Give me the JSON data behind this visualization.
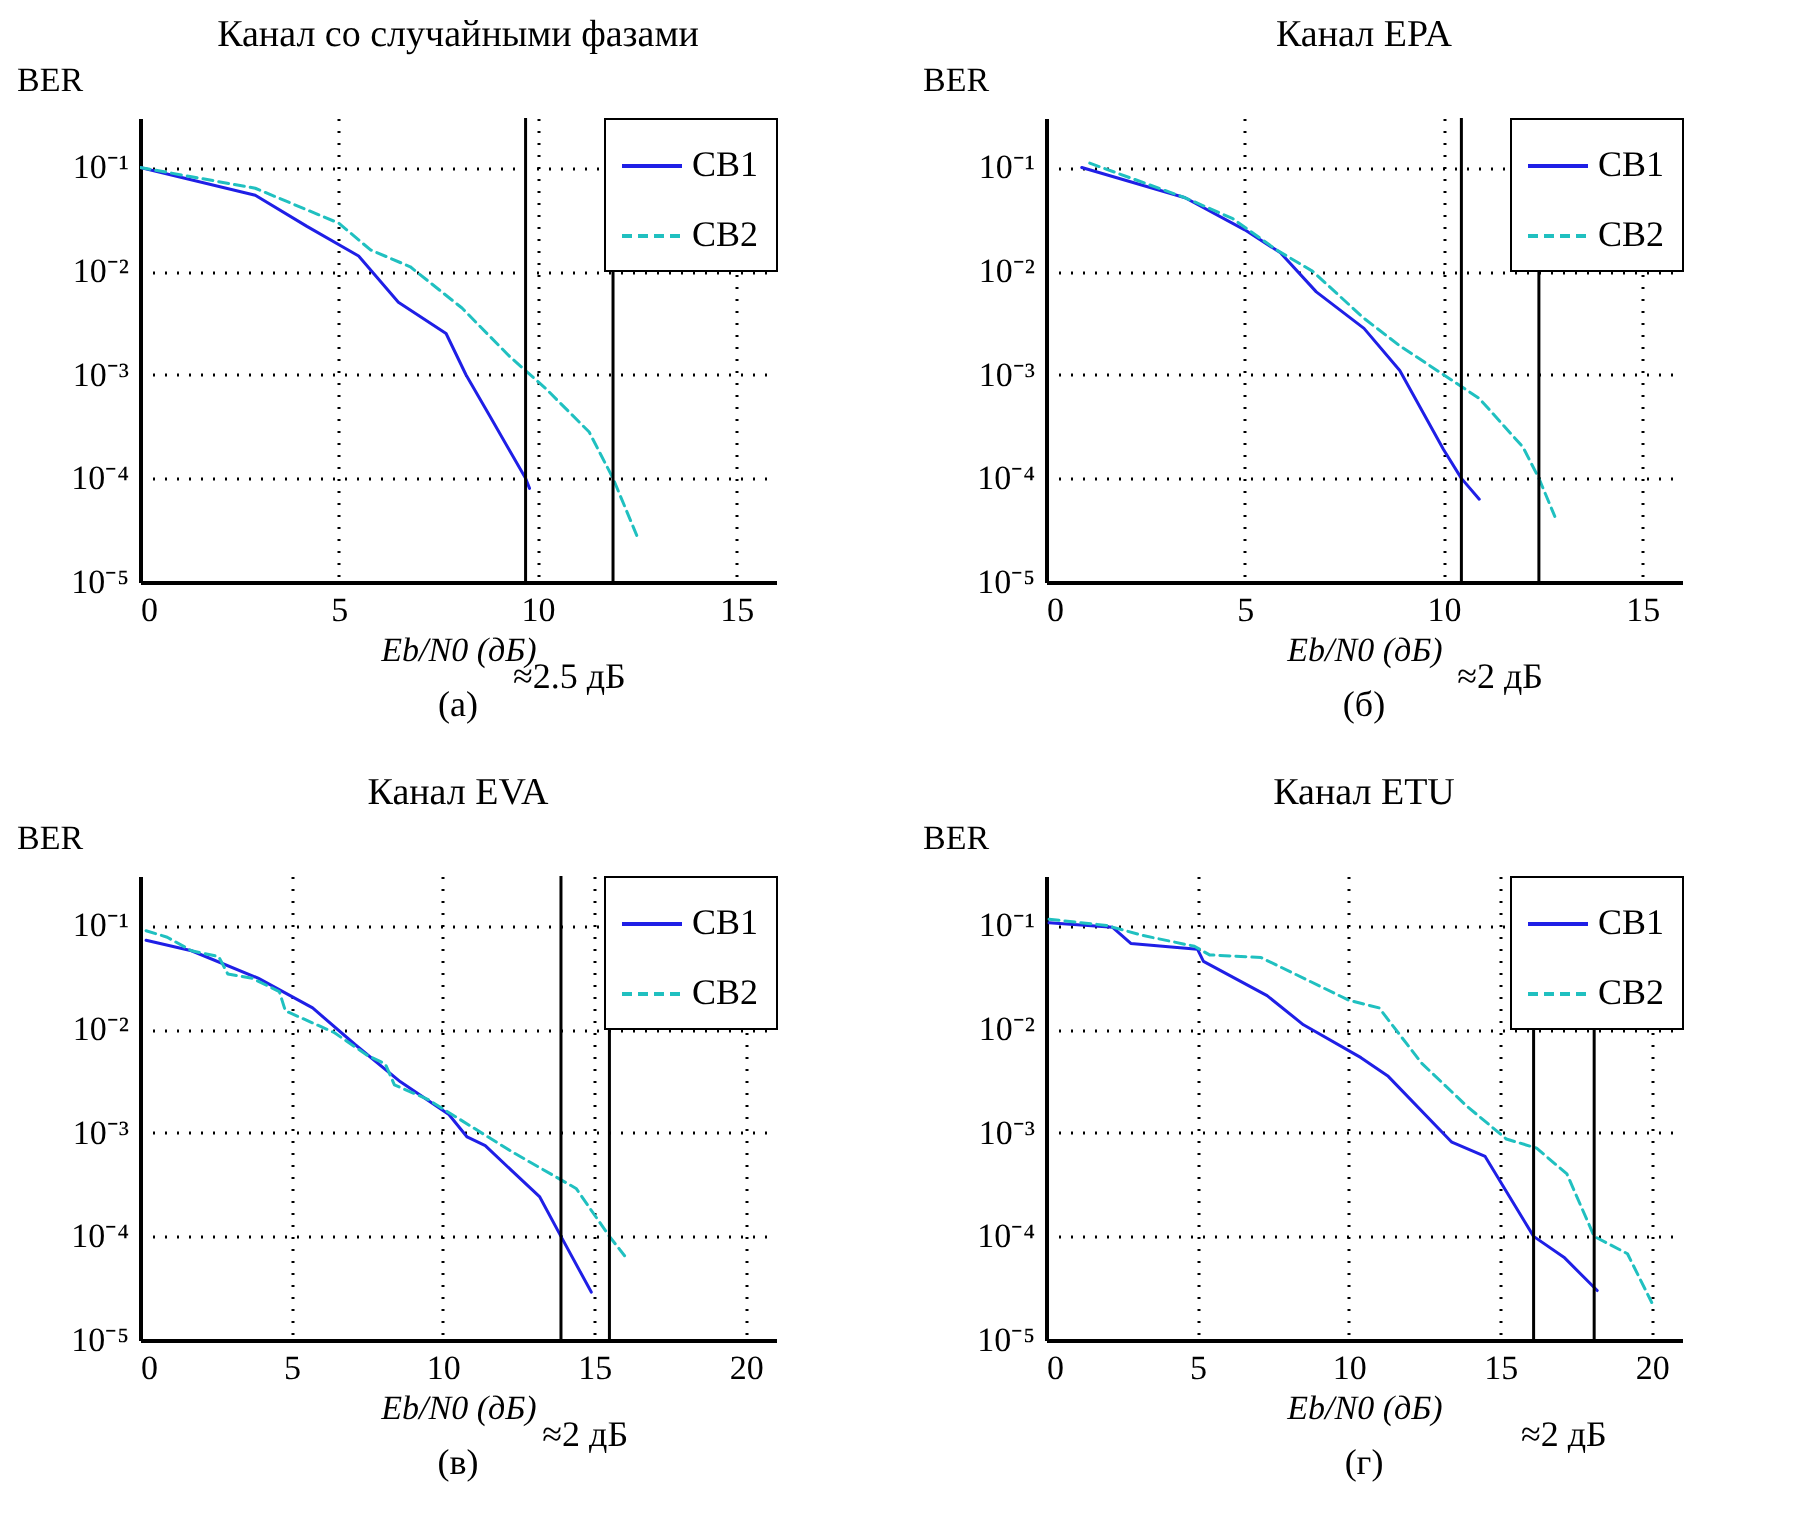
{
  "chart_data": [
    {
      "type": "line",
      "title": "Канал со случайными фазами",
      "xlabel": "Eb/N0 (дБ)",
      "ylabel": "BER",
      "xlim": [
        0,
        16
      ],
      "xticks": [
        0,
        5,
        10,
        15
      ],
      "ylim": [
        1e-05,
        0.3
      ],
      "yticks": [
        {
          "value": 0.1,
          "label": "10⁻¹"
        },
        {
          "value": 0.01,
          "label": "10⁻²"
        },
        {
          "value": 0.001,
          "label": "10⁻³"
        },
        {
          "value": 0.0001,
          "label": "10⁻⁴"
        },
        {
          "value": 1e-05,
          "label": "10⁻⁵"
        }
      ],
      "log": true,
      "grid": true,
      "legend": "top right",
      "marker": "none",
      "series": [
        {
          "name": "СВ1",
          "color": "#1f1fe6",
          "line_style": "solid",
          "x": [
            0,
            2.9,
            4.2,
            5.5,
            6.5,
            7.7,
            8.2,
            8.8,
            9.7,
            9.8
          ],
          "values": [
            0.1,
            0.054,
            0.027,
            0.014,
            0.005,
            0.0025,
            0.001,
            0.0004,
            0.0001,
            8e-05
          ]
        },
        {
          "name": "СВ2",
          "color": "#20c0c0",
          "line_style": "dashed",
          "x": [
            0,
            2.9,
            5,
            5.8,
            6.8,
            8.1,
            9.3,
            10.2,
            11.3,
            11.9,
            12.5
          ],
          "values": [
            0.1,
            0.063,
            0.029,
            0.016,
            0.011,
            0.0044,
            0.0015,
            0.00074,
            0.00028,
            0.0001,
            2.8e-05
          ]
        }
      ],
      "ref_lines": [
        {
          "axis": "x",
          "value": 9.7,
          "color": "#000000"
        },
        {
          "axis": "x",
          "value": 11.9,
          "color": "#000000"
        }
      ],
      "annotations": [
        "(а)",
        "≈2.5 дБ"
      ]
    },
    {
      "type": "line",
      "title": "Канал EPA",
      "xlabel": "Eb/N0 (дБ)",
      "ylabel": "BER",
      "xlim": [
        0,
        16
      ],
      "xticks": [
        0,
        5,
        10,
        15
      ],
      "ylim": [
        1e-05,
        0.3
      ],
      "yticks": [
        {
          "value": 0.1,
          "label": "10⁻¹"
        },
        {
          "value": 0.01,
          "label": "10⁻²"
        },
        {
          "value": 0.001,
          "label": "10⁻³"
        },
        {
          "value": 0.0001,
          "label": "10⁻⁴"
        },
        {
          "value": 1e-05,
          "label": "10⁻⁵"
        }
      ],
      "log": true,
      "grid": true,
      "legend": "top right",
      "marker": "none",
      "series": [
        {
          "name": "СВ1",
          "color": "#1f1fe6",
          "line_style": "solid",
          "x": [
            0.9,
            3.5,
            5,
            5.9,
            6.8,
            8,
            8.9,
            10,
            10.45,
            10.9
          ],
          "values": [
            0.1,
            0.051,
            0.025,
            0.015,
            0.0063,
            0.0028,
            0.0011,
            0.00019,
            0.0001,
            6.3e-05
          ]
        },
        {
          "name": "СВ2",
          "color": "#20c0c0",
          "line_style": "dashed",
          "x": [
            1.1,
            3.5,
            4.7,
            5.8,
            6.7,
            8,
            8.9,
            10,
            10.9,
            12,
            12.4,
            12.8
          ],
          "values": [
            0.11,
            0.051,
            0.032,
            0.016,
            0.01,
            0.0035,
            0.0019,
            0.001,
            0.00059,
            0.0002,
            0.0001,
            4.3e-05
          ]
        }
      ],
      "ref_lines": [
        {
          "axis": "x",
          "value": 10.45,
          "color": "#000000"
        },
        {
          "axis": "x",
          "value": 12.4,
          "color": "#000000"
        }
      ],
      "annotations": [
        "(б)",
        "≈2 дБ"
      ]
    },
    {
      "type": "line",
      "title": "Канал EVA",
      "xlabel": "Eb/N0 (дБ)",
      "ylabel": "BER",
      "xlim": [
        0,
        21
      ],
      "xticks": [
        0,
        5,
        10,
        15,
        20
      ],
      "ylim": [
        1e-05,
        0.3
      ],
      "yticks": [
        {
          "value": 0.1,
          "label": "10⁻¹"
        },
        {
          "value": 0.01,
          "label": "10⁻²"
        },
        {
          "value": 0.001,
          "label": "10⁻³"
        },
        {
          "value": 0.0001,
          "label": "10⁻⁴"
        },
        {
          "value": 1e-05,
          "label": "10⁻⁵"
        }
      ],
      "log": true,
      "grid": true,
      "legend": "top right",
      "marker": "none",
      "series": [
        {
          "name": "СВ1",
          "color": "#1f1fe6",
          "line_style": "solid",
          "x": [
            0.2,
            1.7,
            3.9,
            5.7,
            7.1,
            8.6,
            10.2,
            10.8,
            11.4,
            13.2,
            13.9,
            14.9
          ],
          "values": [
            0.072,
            0.057,
            0.031,
            0.016,
            0.0071,
            0.0031,
            0.0015,
            0.00091,
            0.00075,
            0.00024,
            0.0001,
            2.9e-05
          ]
        },
        {
          "name": "СВ2",
          "color": "#20c0c0",
          "line_style": "dashed",
          "x": [
            0.2,
            0.9,
            1.7,
            2.6,
            2.9,
            3.7,
            4.6,
            4.8,
            6.4,
            7.5,
            8.1,
            8.4,
            9.5,
            10.3,
            12.3,
            14.4,
            15.5,
            16
          ],
          "values": [
            0.089,
            0.077,
            0.057,
            0.05,
            0.034,
            0.031,
            0.023,
            0.015,
            0.0093,
            0.0056,
            0.0046,
            0.0029,
            0.0021,
            0.0015,
            0.00065,
            0.00029,
            0.0001,
            6.5e-05
          ]
        }
      ],
      "ref_lines": [
        {
          "axis": "x",
          "value": 13.9,
          "color": "#000000"
        },
        {
          "axis": "x",
          "value": 15.5,
          "color": "#000000"
        }
      ],
      "annotations": [
        "(в)",
        "≈2 дБ"
      ]
    },
    {
      "type": "line",
      "title": "Канал ETU",
      "xlabel": "Eb/N0 (дБ)",
      "ylabel": "BER",
      "xlim": [
        0,
        21
      ],
      "xticks": [
        0,
        5,
        10,
        15,
        20
      ],
      "ylim": [
        1e-05,
        0.3
      ],
      "yticks": [
        {
          "value": 0.1,
          "label": "10⁻¹"
        },
        {
          "value": 0.01,
          "label": "10⁻²"
        },
        {
          "value": 0.001,
          "label": "10⁻³"
        },
        {
          "value": 0.0001,
          "label": "10⁻⁴"
        },
        {
          "value": 1e-05,
          "label": "10⁻⁵"
        }
      ],
      "log": true,
      "grid": true,
      "legend": "top right",
      "marker": "none",
      "series": [
        {
          "name": "СВ1",
          "color": "#1f1fe6",
          "line_style": "solid",
          "x": [
            0.1,
            2.2,
            2.8,
            5,
            5.2,
            7.3,
            8.5,
            10.4,
            11.3,
            13.4,
            14.5,
            16.1,
            17.1,
            18.2
          ],
          "values": [
            0.106,
            0.096,
            0.067,
            0.059,
            0.045,
            0.021,
            0.011,
            0.0053,
            0.0035,
            0.00081,
            0.00059,
            0.0001,
            6.3e-05,
            3e-05
          ]
        },
        {
          "name": "СВ2",
          "color": "#20c0c0",
          "line_style": "dashed",
          "x": [
            0.1,
            2,
            3.2,
            4.9,
            5.4,
            7.1,
            10,
            11,
            12.4,
            13.9,
            15.2,
            16.2,
            17.2,
            18.1,
            19.2,
            20
          ],
          "values": [
            0.115,
            0.1,
            0.08,
            0.063,
            0.052,
            0.049,
            0.019,
            0.016,
            0.0047,
            0.0018,
            0.00087,
            0.00071,
            0.0004,
            0.0001,
            6.8e-05,
            2.3e-05
          ]
        }
      ],
      "ref_lines": [
        {
          "axis": "x",
          "value": 16.1,
          "color": "#000000"
        },
        {
          "axis": "x",
          "value": 18.1,
          "color": "#000000"
        }
      ],
      "annotations": [
        "(г)",
        "≈2 дБ"
      ]
    }
  ]
}
